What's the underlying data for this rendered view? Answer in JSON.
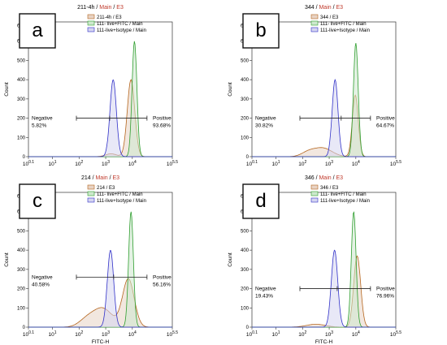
{
  "chart_data": [
    {
      "type": "histogram",
      "panel_letter": "a",
      "title_parts": [
        {
          "text": "211-4h",
          "color": "#000000"
        },
        {
          "text": " / ",
          "color": "#000000"
        },
        {
          "text": "Main",
          "color": "#c0392b"
        },
        {
          "text": " / ",
          "color": "#000000"
        },
        {
          "text": "E3",
          "color": "#c0392b"
        }
      ],
      "xlabel": "",
      "ylabel": "Count",
      "x_scale": "log10",
      "xlim_exp": [
        0.1,
        5.5
      ],
      "ylim": [
        0,
        700
      ],
      "x_tick_labels": [
        {
          "base": "10",
          "exp": "0.1",
          "at": 0.1
        },
        {
          "base": "10",
          "exp": "1",
          "at": 1
        },
        {
          "base": "10",
          "exp": "2",
          "at": 2
        },
        {
          "base": "10",
          "exp": "3",
          "at": 3
        },
        {
          "base": "10",
          "exp": "4",
          "at": 4
        },
        {
          "base": "10",
          "exp": "5.5",
          "at": 5.5
        }
      ],
      "y_ticks": [
        "0",
        "100",
        "200",
        "300",
        "400",
        "500",
        "600",
        "680"
      ],
      "legend": [
        "211-4h / E3",
        "111- live+FITC / Main",
        "111-live+Isotype / Main"
      ],
      "gate": {
        "left_label": "Negative",
        "left_value": "5.82%",
        "right_label": "Positive",
        "right_value": "93.68%",
        "y": 200,
        "x_start": 1.9,
        "x_split": 3.15,
        "x_end": 4.55
      },
      "series": [
        {
          "color": "#b5651d",
          "fill": "#e8d3c4",
          "peaks": [
            {
              "mu": 3.95,
              "sigma": 0.14,
              "h": 400
            },
            {
              "mu": 3.2,
              "sigma": 0.2,
              "h": 15
            }
          ]
        },
        {
          "color": "#2e9e2e",
          "fill": "#cde8cd",
          "peaks": [
            {
              "mu": 4.08,
              "sigma": 0.09,
              "h": 600
            }
          ]
        },
        {
          "color": "#3030c8",
          "fill": "#d5d5f0",
          "peaks": [
            {
              "mu": 3.28,
              "sigma": 0.12,
              "h": 400
            }
          ]
        }
      ]
    },
    {
      "type": "histogram",
      "panel_letter": "b",
      "title_parts": [
        {
          "text": "344",
          "color": "#000000"
        },
        {
          "text": " / ",
          "color": "#000000"
        },
        {
          "text": "Main",
          "color": "#c0392b"
        },
        {
          "text": " / ",
          "color": "#000000"
        },
        {
          "text": "E3",
          "color": "#c0392b"
        }
      ],
      "xlabel": "",
      "ylabel": "Count",
      "x_scale": "log10",
      "xlim_exp": [
        0.1,
        5.5
      ],
      "ylim": [
        0,
        700
      ],
      "x_tick_labels": [
        {
          "base": "10",
          "exp": "0.1",
          "at": 0.1
        },
        {
          "base": "10",
          "exp": "1",
          "at": 1
        },
        {
          "base": "10",
          "exp": "2",
          "at": 2
        },
        {
          "base": "10",
          "exp": "3",
          "at": 3
        },
        {
          "base": "10",
          "exp": "4",
          "at": 4
        },
        {
          "base": "10",
          "exp": "5.5",
          "at": 5.5
        }
      ],
      "y_ticks": [
        "0",
        "100",
        "200",
        "300",
        "400",
        "500",
        "600",
        "680"
      ],
      "legend": [
        "344 / E3",
        "111- live+FITC / Main",
        "111-live+Isotype / Main"
      ],
      "gate": {
        "left_label": "Negative",
        "left_value": "30.82%",
        "right_label": "Positive",
        "right_value": "64.67%",
        "y": 200,
        "x_start": 1.9,
        "x_split": 3.45,
        "x_end": 4.55
      },
      "series": [
        {
          "color": "#b5651d",
          "fill": "#e8d3c4",
          "peaks": [
            {
              "mu": 3.98,
              "sigma": 0.11,
              "h": 320
            },
            {
              "mu": 2.75,
              "sigma": 0.35,
              "h": 45
            },
            {
              "mu": 2.2,
              "sigma": 0.25,
              "h": 20
            }
          ]
        },
        {
          "color": "#2e9e2e",
          "fill": "#cde8cd",
          "peaks": [
            {
              "mu": 4.0,
              "sigma": 0.09,
              "h": 590
            }
          ]
        },
        {
          "color": "#3030c8",
          "fill": "#d5d5f0",
          "peaks": [
            {
              "mu": 3.22,
              "sigma": 0.11,
              "h": 400
            }
          ]
        }
      ]
    },
    {
      "type": "histogram",
      "panel_letter": "c",
      "title_parts": [
        {
          "text": "214",
          "color": "#000000"
        },
        {
          "text": " / ",
          "color": "#000000"
        },
        {
          "text": "Main",
          "color": "#c0392b"
        },
        {
          "text": " / ",
          "color": "#000000"
        },
        {
          "text": "E3",
          "color": "#c0392b"
        }
      ],
      "xlabel": "FITC-H",
      "ylabel": "Count",
      "x_scale": "log10",
      "xlim_exp": [
        0.1,
        5.5
      ],
      "ylim": [
        0,
        700
      ],
      "x_tick_labels": [
        {
          "base": "10",
          "exp": "0.1",
          "at": 0.1
        },
        {
          "base": "10",
          "exp": "1",
          "at": 1
        },
        {
          "base": "10",
          "exp": "2",
          "at": 2
        },
        {
          "base": "10",
          "exp": "3",
          "at": 3
        },
        {
          "base": "10",
          "exp": "4",
          "at": 4
        },
        {
          "base": "10",
          "exp": "5.5",
          "at": 5.5
        }
      ],
      "y_ticks": [
        "0",
        "100",
        "200",
        "300",
        "400",
        "500",
        "600",
        "680"
      ],
      "legend": [
        "214 / E3",
        "111- live+FITC / Main",
        "111-live+Isotype / Main"
      ],
      "gate": {
        "left_label": "Negative",
        "left_value": "40.58%",
        "right_label": "Positive",
        "right_value": "56.16%",
        "y": 260,
        "x_start": 1.9,
        "x_split": 3.3,
        "x_end": 4.55
      },
      "series": [
        {
          "color": "#b5651d",
          "fill": "#e8d3c4",
          "peaks": [
            {
              "mu": 3.85,
              "sigma": 0.22,
              "h": 250
            },
            {
              "mu": 2.9,
              "sigma": 0.35,
              "h": 95
            },
            {
              "mu": 2.3,
              "sigma": 0.3,
              "h": 40
            }
          ]
        },
        {
          "color": "#2e9e2e",
          "fill": "#cde8cd",
          "peaks": [
            {
              "mu": 3.95,
              "sigma": 0.09,
              "h": 600
            }
          ]
        },
        {
          "color": "#3030c8",
          "fill": "#d5d5f0",
          "peaks": [
            {
              "mu": 3.18,
              "sigma": 0.12,
              "h": 400
            }
          ]
        }
      ]
    },
    {
      "type": "histogram",
      "panel_letter": "d",
      "title_parts": [
        {
          "text": "346",
          "color": "#000000"
        },
        {
          "text": " / ",
          "color": "#000000"
        },
        {
          "text": "Main",
          "color": "#c0392b"
        },
        {
          "text": " / ",
          "color": "#000000"
        },
        {
          "text": "E3",
          "color": "#c0392b"
        }
      ],
      "xlabel": "FITC-H",
      "ylabel": "Count",
      "x_scale": "log10",
      "xlim_exp": [
        0.1,
        5.5
      ],
      "ylim": [
        0,
        700
      ],
      "x_tick_labels": [
        {
          "base": "10",
          "exp": "0.1",
          "at": 0.1
        },
        {
          "base": "10",
          "exp": "1",
          "at": 1
        },
        {
          "base": "10",
          "exp": "2",
          "at": 2
        },
        {
          "base": "10",
          "exp": "3",
          "at": 3
        },
        {
          "base": "10",
          "exp": "4",
          "at": 4
        },
        {
          "base": "10",
          "exp": "5.5",
          "at": 5.5
        }
      ],
      "y_ticks": [
        "0",
        "100",
        "200",
        "300",
        "400",
        "500",
        "600",
        "680"
      ],
      "legend": [
        "346 / E3",
        "111- live+FITC / Main",
        "111-live+Isotype / Main"
      ],
      "gate": {
        "left_label": "Negative",
        "left_value": "19.43%",
        "right_label": "Positive",
        "right_value": "76.96%",
        "y": 200,
        "x_start": 1.9,
        "x_split": 3.3,
        "x_end": 4.55
      },
      "series": [
        {
          "color": "#b5651d",
          "fill": "#e8d3c4",
          "peaks": [
            {
              "mu": 4.05,
              "sigma": 0.13,
              "h": 370
            },
            {
              "mu": 2.5,
              "sigma": 0.35,
              "h": 15
            }
          ]
        },
        {
          "color": "#2e9e2e",
          "fill": "#cde8cd",
          "peaks": [
            {
              "mu": 3.92,
              "sigma": 0.09,
              "h": 600
            }
          ]
        },
        {
          "color": "#3030c8",
          "fill": "#d5d5f0",
          "peaks": [
            {
              "mu": 3.2,
              "sigma": 0.12,
              "h": 400
            }
          ]
        }
      ]
    }
  ]
}
